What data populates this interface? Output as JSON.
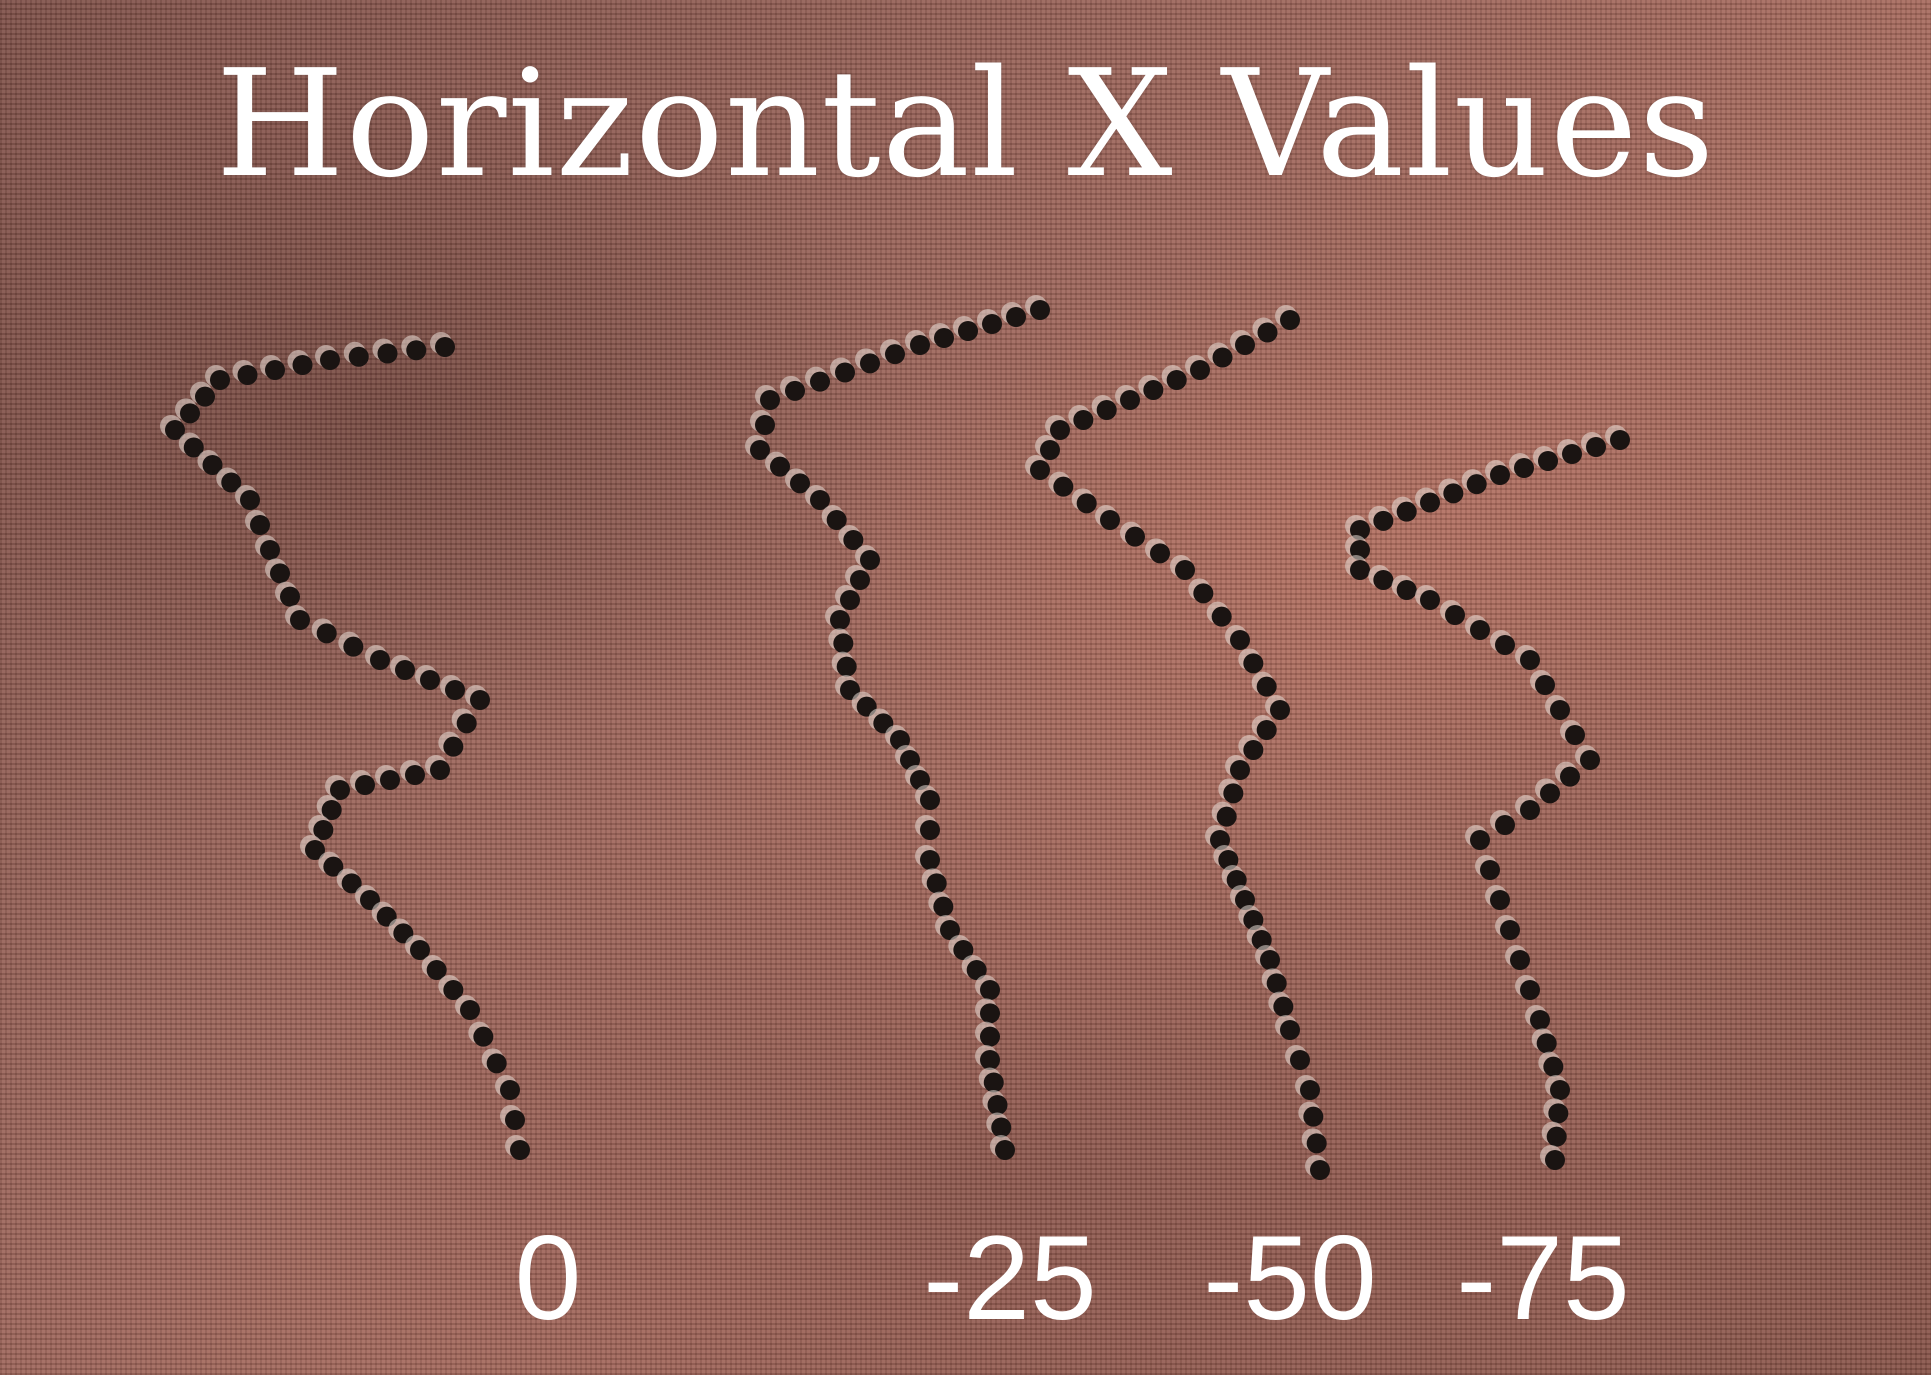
{
  "title": "Horizontal X Values",
  "labels": [
    "0",
    "-25",
    "-50",
    "-75"
  ],
  "colors": {
    "background": "#9a6358",
    "text": "#ffffff",
    "dots": "#1a1412",
    "dot_highlight": "#e8ddd6"
  }
}
